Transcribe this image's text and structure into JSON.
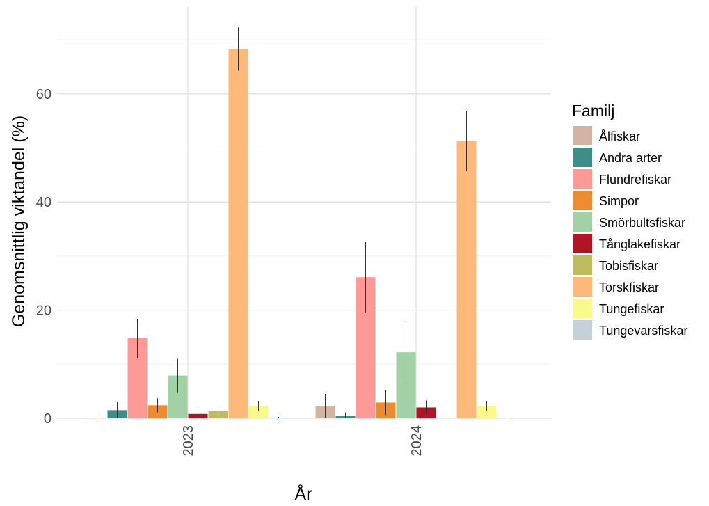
{
  "chart_data": {
    "type": "bar",
    "title": "",
    "xlabel": "År",
    "ylabel": "Genomsnittlig viktandel (%)",
    "ylim": [
      0,
      72
    ],
    "yticks": [
      0,
      20,
      40,
      60
    ],
    "grid": true,
    "legend_position": "right",
    "legend_title": "Familj",
    "categories": [
      "2023",
      "2024"
    ],
    "series": [
      {
        "name": "Ålfiskar",
        "color": "#d2b4a5",
        "values": [
          0.1,
          2.3
        ],
        "errors": [
          0.1,
          2.2
        ]
      },
      {
        "name": "Andra arter",
        "color": "#3b8f88",
        "values": [
          1.5,
          0.5
        ],
        "errors": [
          1.5,
          0.6
        ]
      },
      {
        "name": "Flundrefiskar",
        "color": "#fd9a98",
        "values": [
          14.8,
          26.1
        ],
        "errors": [
          3.6,
          6.5
        ]
      },
      {
        "name": "Simpor",
        "color": "#ec8b2f",
        "values": [
          2.4,
          2.9
        ],
        "errors": [
          1.3,
          2.3
        ]
      },
      {
        "name": "Smörbultsfiskar",
        "color": "#a2d1a6",
        "values": [
          7.9,
          12.2
        ],
        "errors": [
          3.1,
          5.8
        ]
      },
      {
        "name": "Tånglakefiskar",
        "color": "#b01425",
        "values": [
          0.8,
          2.0
        ],
        "errors": [
          1.0,
          1.3
        ]
      },
      {
        "name": "Tobisfiskar",
        "color": "#bdbd5f",
        "values": [
          1.3,
          0
        ],
        "errors": [
          0.8,
          0
        ]
      },
      {
        "name": "Torskfiskar",
        "color": "#fdb979",
        "values": [
          68.3,
          51.3
        ],
        "errors": [
          4.0,
          5.6
        ]
      },
      {
        "name": "Tungefiskar",
        "color": "#fafa8c",
        "values": [
          2.3,
          2.3
        ],
        "errors": [
          0.9,
          0.9
        ]
      },
      {
        "name": "Tungevarsfiskar",
        "color": "#c6d0db",
        "values": [
          0.15,
          0.05
        ],
        "errors": [
          0.1,
          0.05
        ]
      }
    ]
  }
}
